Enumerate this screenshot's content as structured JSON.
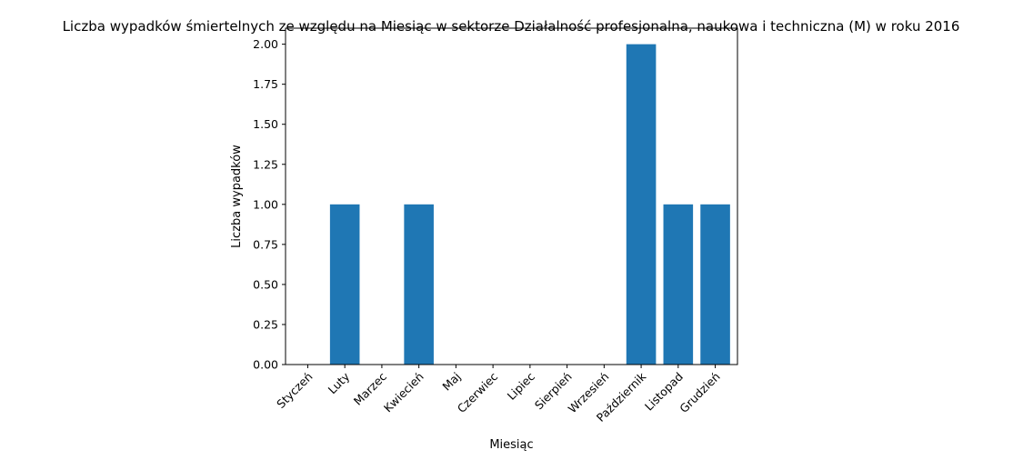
{
  "chart_data": {
    "type": "bar",
    "title": "Liczba wypadków śmiertelnych ze względu na Miesiąc w sektorze Działalność profesjonalna, naukowa i techniczna  (M) w roku 2016",
    "xlabel": "Miesiąc",
    "ylabel": "Liczba wypadków",
    "categories": [
      "Styczeń",
      "Luty",
      "Marzec",
      "Kwiecień",
      "Maj",
      "Czerwiec",
      "Lipiec",
      "Sierpień",
      "Wrzesień",
      "Październik",
      "Listopad",
      "Grudzień"
    ],
    "values": [
      0,
      1,
      0,
      1,
      0,
      0,
      0,
      0,
      0,
      2,
      1,
      1
    ],
    "ylim": [
      0,
      2.1
    ],
    "yticks": [
      "0.00",
      "0.25",
      "0.50",
      "0.75",
      "1.00",
      "1.25",
      "1.50",
      "1.75",
      "2.00"
    ],
    "bar_color": "#1f77b4",
    "grid": false,
    "legend": "none"
  }
}
